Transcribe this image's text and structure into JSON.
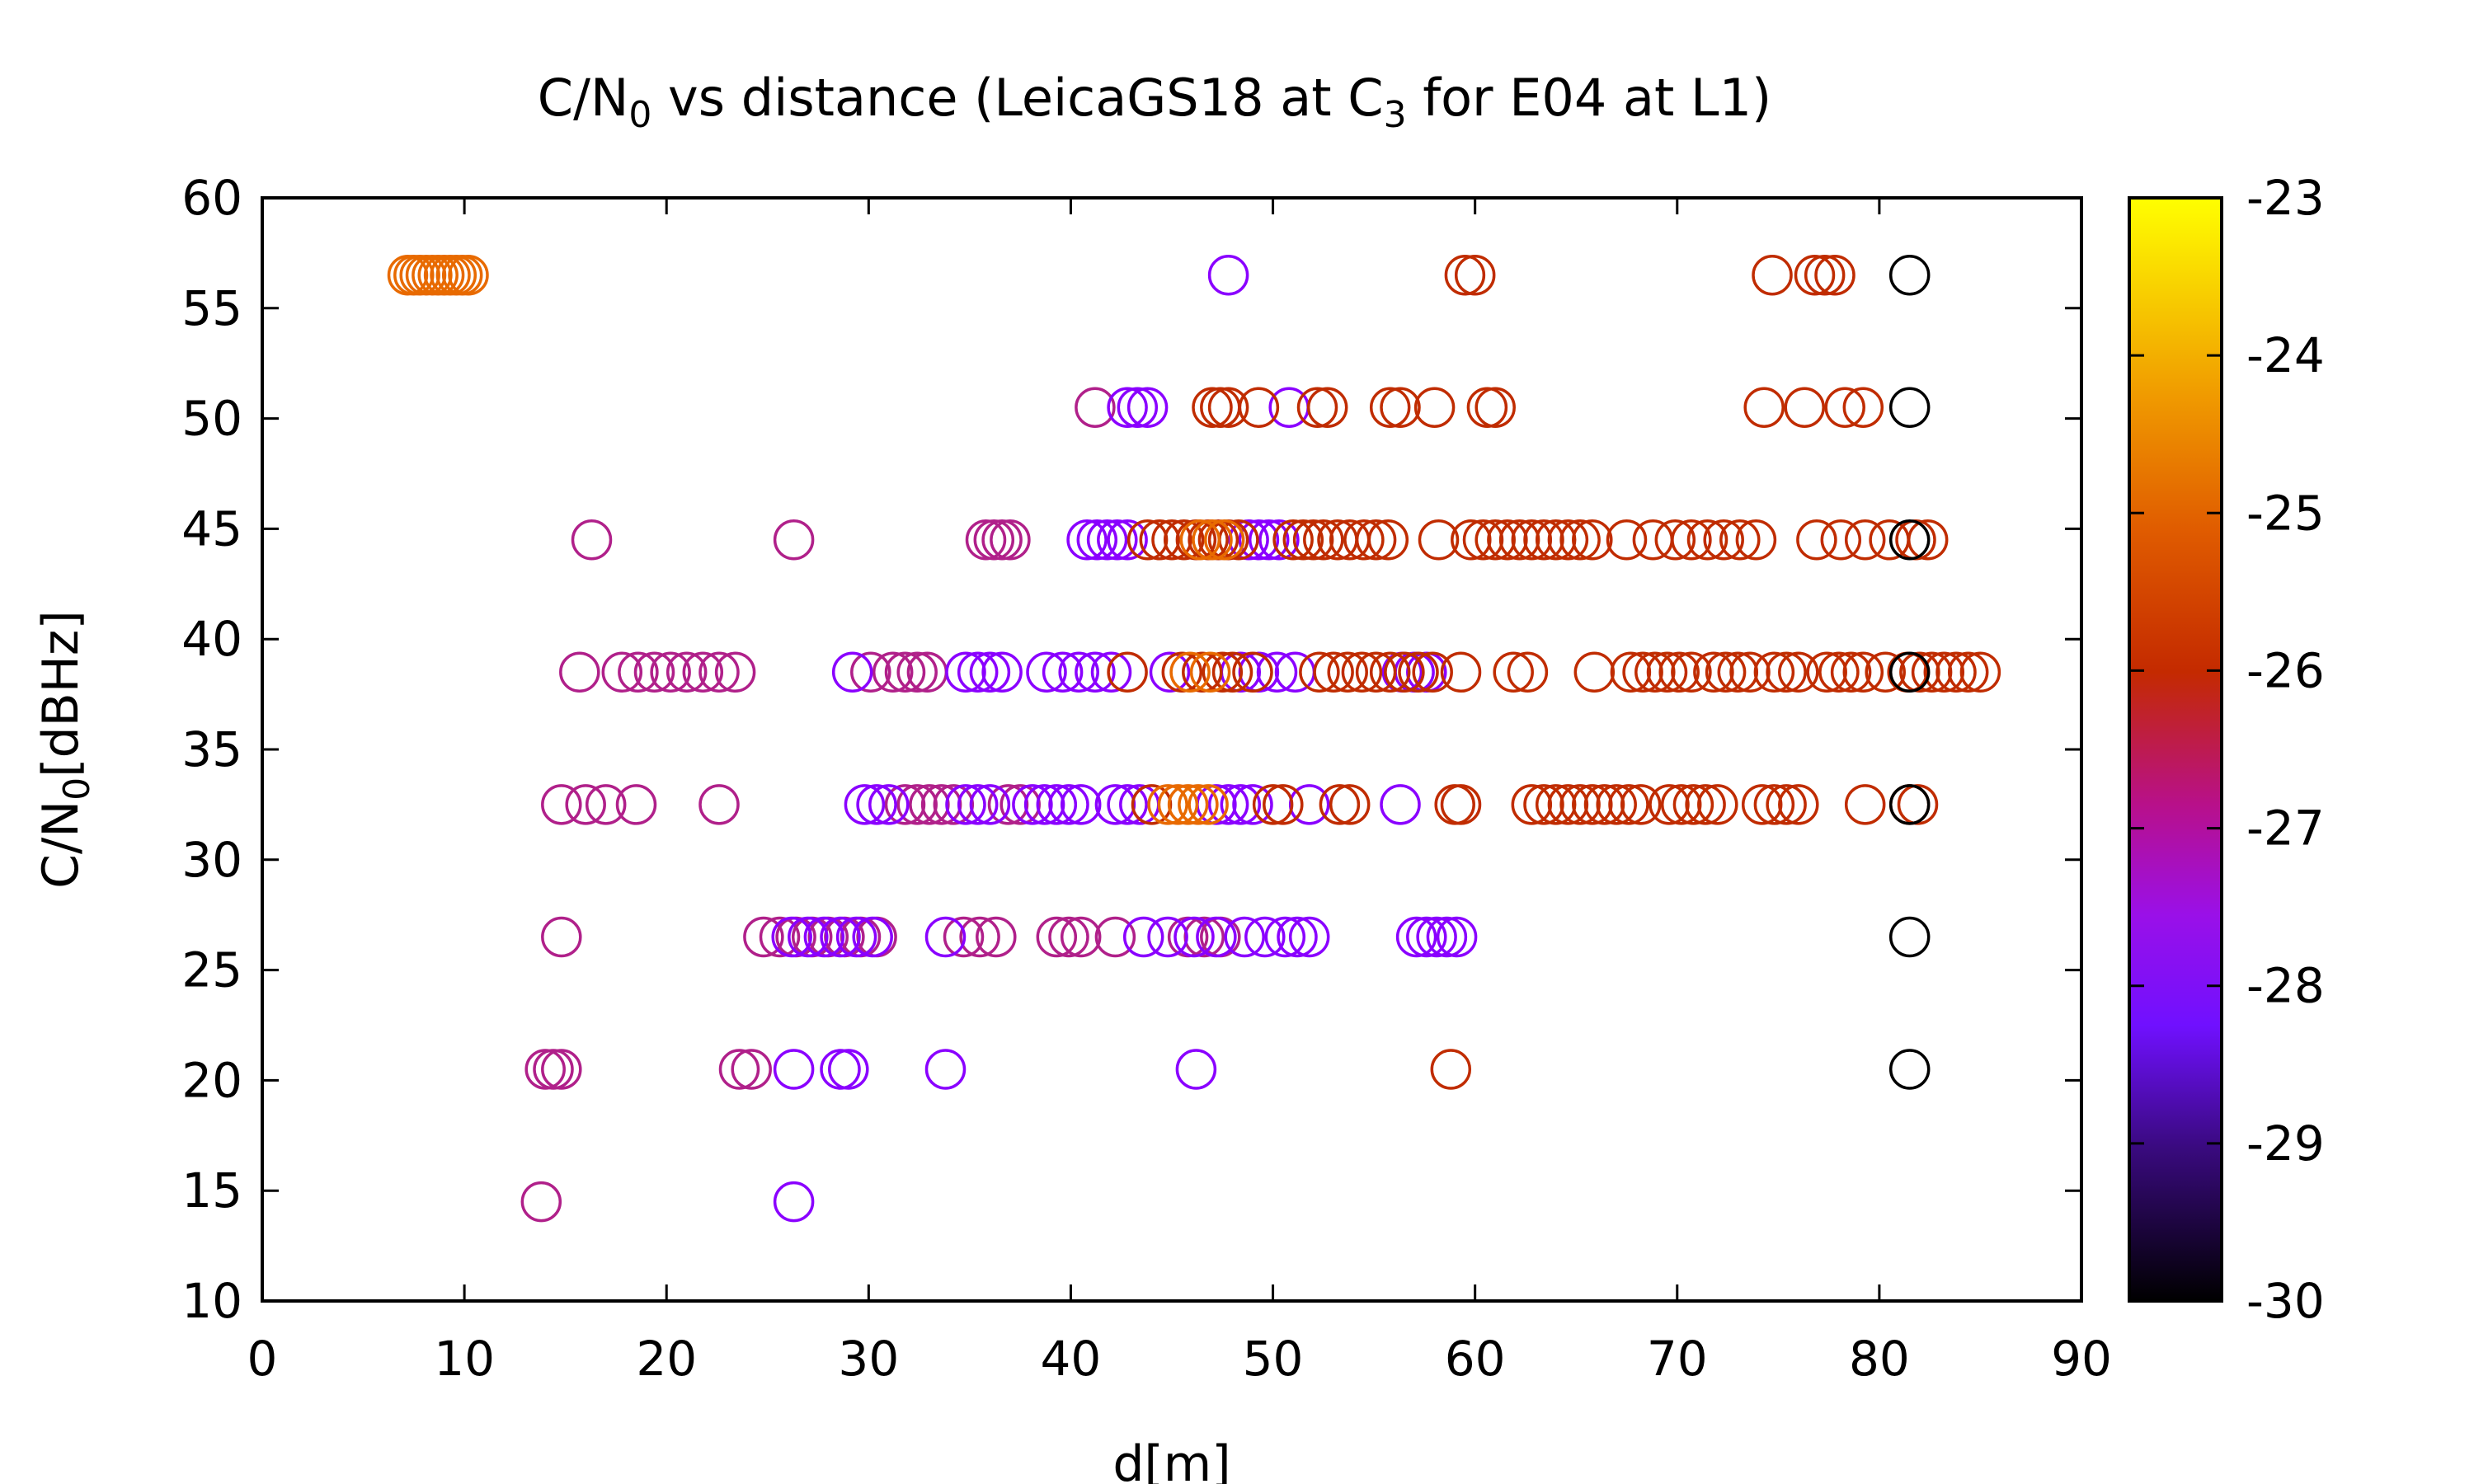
{
  "chart_data": {
    "type": "scatter",
    "title": {
      "part1": "C/N",
      "sub1": "0",
      "part2": " vs distance (LeicaGS18 at C",
      "sub2": "3",
      "part3": " for E04 at L1)"
    },
    "xlabel": "d[m]",
    "ylabel": {
      "part1": "C/N",
      "sub1": "0",
      "part2": "[dBHz]"
    },
    "xlim": [
      0,
      90
    ],
    "ylim": [
      10,
      60
    ],
    "xticks": [
      0,
      10,
      20,
      30,
      40,
      50,
      60,
      70,
      80,
      90
    ],
    "yticks": [
      10,
      15,
      20,
      25,
      30,
      35,
      40,
      45,
      50,
      55,
      60
    ],
    "colorbar": {
      "min": -30,
      "max": -23,
      "ticks": [
        -30,
        -29,
        -28,
        -27,
        -26,
        -25,
        -24,
        -23
      ]
    },
    "palette": {
      "black": "#000000",
      "purple": "#8a00ff",
      "magenta": "#b0208a",
      "red": "#c02c00",
      "orange": "#e86a00"
    },
    "grid": false,
    "marker": "open-circle",
    "rows": [
      {
        "y": 56.5,
        "segments": [
          {
            "color": "orange",
            "xs": [
              7.2,
              7.5,
              7.8,
              8.1,
              8.4,
              8.7,
              9.0,
              9.3,
              9.6,
              9.9,
              10.2
            ]
          },
          {
            "color": "purple",
            "xs": [
              47.8
            ]
          },
          {
            "color": "red",
            "xs": [
              59.5,
              60.0,
              74.7,
              76.8,
              77.3,
              77.8
            ]
          },
          {
            "color": "black",
            "xs": [
              81.5
            ]
          }
        ]
      },
      {
        "y": 50.5,
        "segments": [
          {
            "color": "magenta",
            "xs": [
              41.2
            ]
          },
          {
            "color": "purple",
            "xs": [
              42.8,
              43.3,
              43.8,
              50.8
            ]
          },
          {
            "color": "red",
            "xs": [
              47.0,
              47.4,
              47.8,
              49.3,
              52.2,
              52.7,
              55.8,
              56.3,
              58.0,
              60.6,
              61.0,
              74.3,
              76.3,
              78.3,
              79.2
            ]
          },
          {
            "color": "black",
            "xs": [
              81.5
            ]
          }
        ]
      },
      {
        "y": 44.5,
        "segments": [
          {
            "color": "magenta",
            "xs": [
              16.3,
              26.3,
              35.8,
              36.2,
              36.6,
              37.0
            ]
          },
          {
            "color": "purple",
            "xs": [
              40.8,
              41.3,
              41.8,
              42.3,
              42.8,
              48.8,
              49.3,
              49.8,
              50.3
            ]
          },
          {
            "color": "red",
            "xs": [
              43.8,
              44.4,
              45.0,
              45.6,
              46.2,
              46.8,
              47.3,
              47.8,
              48.3,
              51.0,
              51.5,
              52.0,
              52.5,
              53.2,
              53.8,
              54.5,
              55.1,
              55.7,
              58.2,
              59.8,
              60.4,
              61.0,
              61.6,
              62.2,
              62.8,
              63.4,
              64.0,
              64.6,
              65.2,
              65.8,
              67.5,
              68.8,
              69.9,
              70.7,
              71.5,
              72.3,
              73.1,
              73.9,
              76.9,
              78.1,
              79.3,
              80.5,
              81.8,
              82.4
            ]
          },
          {
            "color": "orange",
            "xs": [
              46.4,
              47.0,
              47.6
            ]
          },
          {
            "color": "black",
            "xs": [
              81.5
            ]
          }
        ]
      },
      {
        "y": 38.5,
        "segments": [
          {
            "color": "magenta",
            "xs": [
              15.7,
              17.8,
              18.6,
              19.4,
              20.2,
              21.0,
              21.8,
              22.6,
              23.4,
              30.1,
              31.2,
              31.8,
              32.4,
              32.9
            ]
          },
          {
            "color": "purple",
            "xs": [
              29.2,
              34.8,
              35.4,
              36.0,
              36.6,
              38.8,
              39.6,
              40.4,
              41.2,
              42.0,
              44.9,
              48.4,
              49.3,
              50.2,
              51.1,
              56.4,
              57.0,
              57.6
            ]
          },
          {
            "color": "red",
            "xs": [
              42.8,
              45.5,
              46.5,
              47.5,
              48.0,
              49.0,
              52.3,
              53.0,
              53.7,
              54.4,
              55.1,
              55.8,
              56.5,
              57.2,
              57.9,
              59.3,
              61.9,
              62.6,
              65.9,
              67.7,
              68.3,
              68.9,
              69.5,
              70.1,
              70.7,
              71.8,
              72.4,
              73.0,
              73.6,
              74.8,
              75.4,
              76.0,
              77.4,
              78.0,
              78.6,
              79.2,
              80.3,
              81.4,
              82.0,
              82.6,
              83.2,
              83.8,
              84.4,
              85.0
            ]
          },
          {
            "color": "orange",
            "xs": [
              45.9,
              46.9
            ]
          },
          {
            "color": "black",
            "xs": [
              81.5
            ]
          }
        ]
      },
      {
        "y": 32.5,
        "segments": [
          {
            "color": "magenta",
            "xs": [
              14.8,
              16.0,
              17.0,
              18.5,
              22.6,
              31.8,
              32.4,
              33.0,
              33.6,
              34.2,
              36.9,
              37.5
            ]
          },
          {
            "color": "purple",
            "xs": [
              29.8,
              30.4,
              31.0,
              34.8,
              35.4,
              36.0,
              38.1,
              38.7,
              39.3,
              39.9,
              40.5,
              42.2,
              42.8,
              43.4,
              47.2,
              47.8,
              48.4,
              49.0,
              51.8,
              56.3
            ]
          },
          {
            "color": "red",
            "xs": [
              44.0,
              50.0,
              50.5,
              53.3,
              53.8,
              59.0,
              59.3,
              62.8,
              63.4,
              64.0,
              64.6,
              65.2,
              65.8,
              66.4,
              67.0,
              67.6,
              68.2,
              69.6,
              70.2,
              70.8,
              71.4,
              72.0,
              74.2,
              74.8,
              75.4,
              76.0,
              79.3,
              81.5,
              81.9
            ]
          },
          {
            "color": "orange",
            "xs": [
              44.8,
              45.3,
              45.8,
              46.3,
              46.8
            ]
          },
          {
            "color": "black",
            "xs": [
              81.5
            ]
          }
        ]
      },
      {
        "y": 26.5,
        "segments": [
          {
            "color": "magenta",
            "xs": [
              14.8,
              24.8,
              25.6,
              26.4,
              27.2,
              28.0,
              28.8,
              29.6,
              30.4,
              34.7,
              35.5,
              36.3,
              39.3,
              39.9,
              40.5,
              42.2,
              45.8,
              46.6,
              47.4
            ]
          },
          {
            "color": "purple",
            "xs": [
              26.2,
              27.0,
              27.8,
              28.6,
              29.4,
              30.2,
              33.8,
              43.6,
              44.8,
              46.1,
              47.2,
              48.6,
              49.6,
              50.6,
              51.2,
              51.8,
              57.1,
              57.6,
              58.1,
              58.6,
              59.1
            ]
          },
          {
            "color": "black",
            "xs": [
              81.5
            ]
          }
        ]
      },
      {
        "y": 20.5,
        "segments": [
          {
            "color": "magenta",
            "xs": [
              14.0,
              14.4,
              14.8,
              23.6,
              24.2
            ]
          },
          {
            "color": "purple",
            "xs": [
              26.3,
              28.6,
              29.0,
              33.8,
              46.2
            ]
          },
          {
            "color": "red",
            "xs": [
              58.8
            ]
          },
          {
            "color": "black",
            "xs": [
              81.5
            ]
          }
        ]
      },
      {
        "y": 14.5,
        "segments": [
          {
            "color": "magenta",
            "xs": [
              13.8
            ]
          },
          {
            "color": "purple",
            "xs": [
              26.3
            ]
          }
        ]
      }
    ]
  }
}
